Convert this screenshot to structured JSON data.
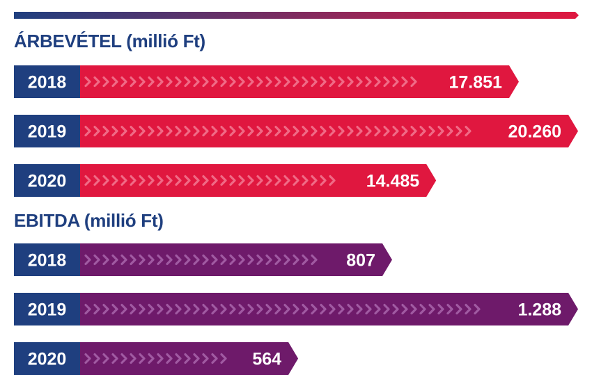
{
  "colors": {
    "year_box": "#1f3f7f",
    "revenue_bar": "#e0173f",
    "revenue_chevron": "#f06a86",
    "ebitda_bar": "#6e1a6a",
    "ebitda_chevron": "#a05aa2",
    "title": "#1f3f7f",
    "rule_start": "#1f3f7f",
    "rule_end": "#e0173f"
  },
  "chart_data": [
    {
      "type": "bar",
      "orientation": "horizontal",
      "title": "ÁRBEVÉTEL (millió Ft)",
      "categories": [
        "2018",
        "2019",
        "2020"
      ],
      "values": [
        17851,
        20260,
        14485
      ],
      "value_labels": [
        "17.851",
        "20.260",
        "14.485"
      ],
      "xlim": [
        0,
        20260
      ]
    },
    {
      "type": "bar",
      "orientation": "horizontal",
      "title": "EBITDA (millió Ft)",
      "categories": [
        "2018",
        "2019",
        "2020"
      ],
      "values": [
        807,
        1288,
        564
      ],
      "value_labels": [
        "807",
        "1.288",
        "564"
      ],
      "xlim": [
        0,
        1288
      ]
    }
  ]
}
